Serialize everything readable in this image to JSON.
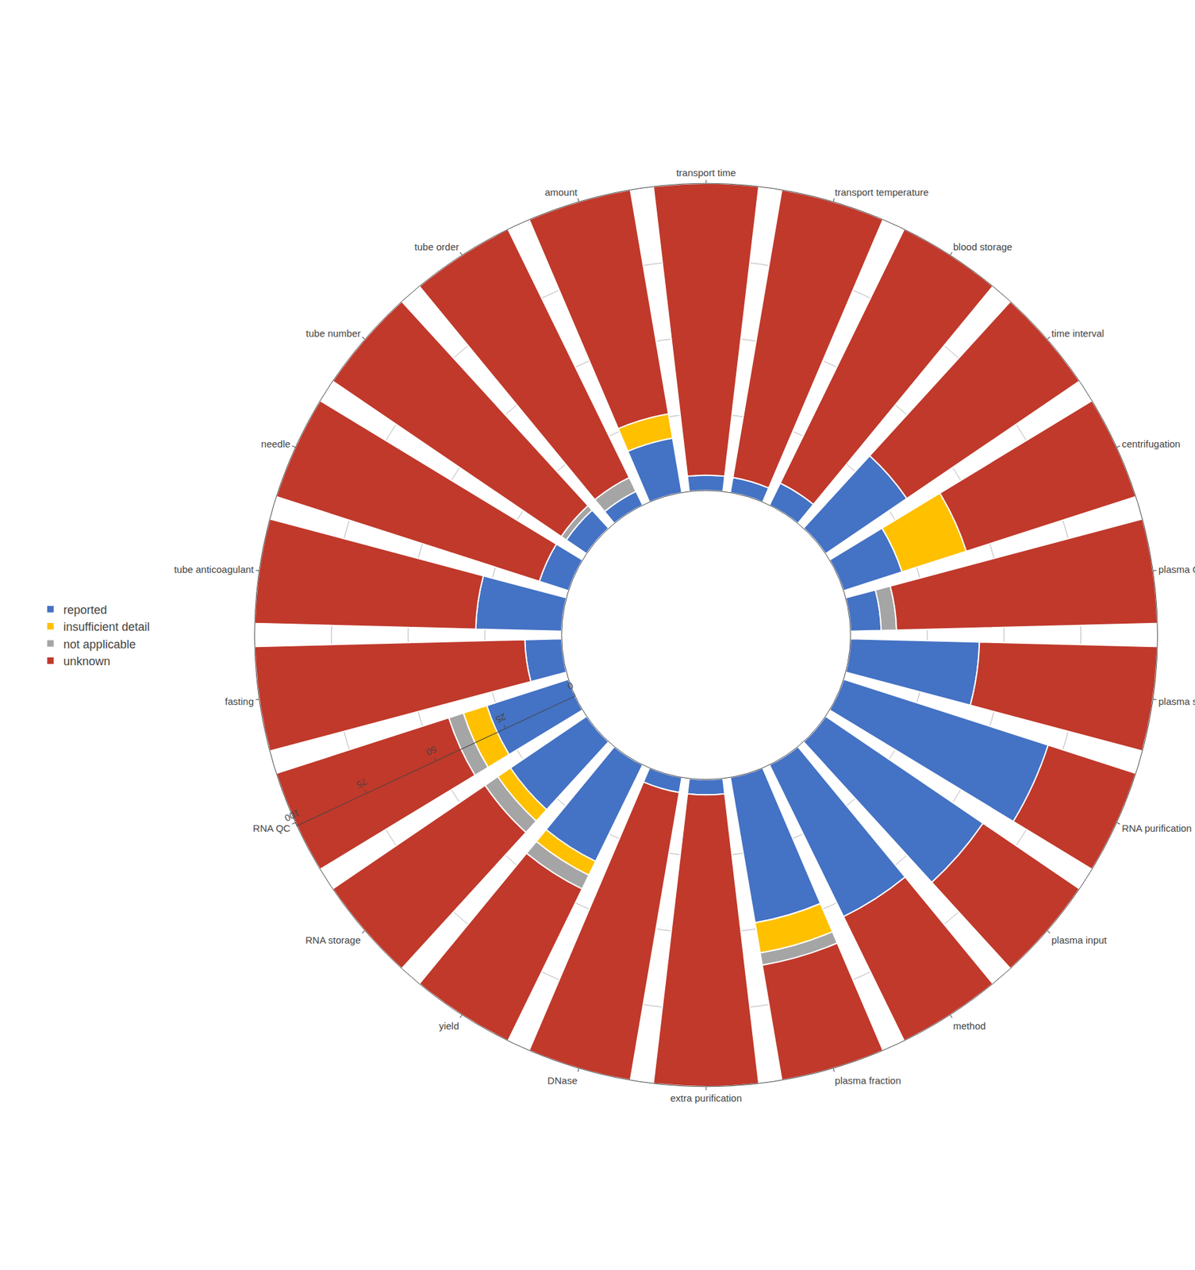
{
  "chart_data": {
    "type": "barpolar",
    "categories": [
      "transport time",
      "transport temperature",
      "blood storage",
      "time interval",
      "centrifugation",
      "plasma QC",
      "plasma storage",
      "RNA purification",
      "plasma input",
      "method",
      "plasma fraction",
      "extra purification",
      "DNase",
      "yield",
      "RNA storage",
      "RNA QC",
      "fasting",
      "tube anticoagulant",
      "needle",
      "tube number",
      "tube order",
      "amount"
    ],
    "series": [
      {
        "name": "reported",
        "color": "#4472C4",
        "values": [
          5,
          5,
          8,
          32,
          20,
          10,
          42,
          70,
          62,
          55,
          48,
          5,
          5,
          35,
          30,
          28,
          12,
          28,
          10,
          8,
          5,
          18
        ]
      },
      {
        "name": "insufficient detail",
        "color": "#FFC000",
        "values": [
          0,
          0,
          0,
          0,
          22,
          0,
          0,
          0,
          0,
          0,
          10,
          0,
          0,
          5,
          5,
          8,
          0,
          0,
          0,
          0,
          0,
          8
        ]
      },
      {
        "name": "not applicable",
        "color": "#A5A5A5",
        "values": [
          0,
          0,
          0,
          0,
          0,
          5,
          0,
          0,
          0,
          0,
          4,
          0,
          0,
          5,
          5,
          5,
          0,
          0,
          0,
          2,
          5,
          0
        ]
      },
      {
        "name": "unknown",
        "color": "#C0392B",
        "values": [
          95,
          95,
          92,
          68,
          58,
          85,
          58,
          30,
          38,
          45,
          38,
          95,
          95,
          55,
          60,
          59,
          88,
          72,
          90,
          90,
          90,
          74
        ]
      }
    ],
    "ylim": [
      0,
      100
    ],
    "yticks": [
      0,
      25,
      50,
      75,
      100
    ],
    "stacked": true,
    "grid": true,
    "legend": "left"
  }
}
